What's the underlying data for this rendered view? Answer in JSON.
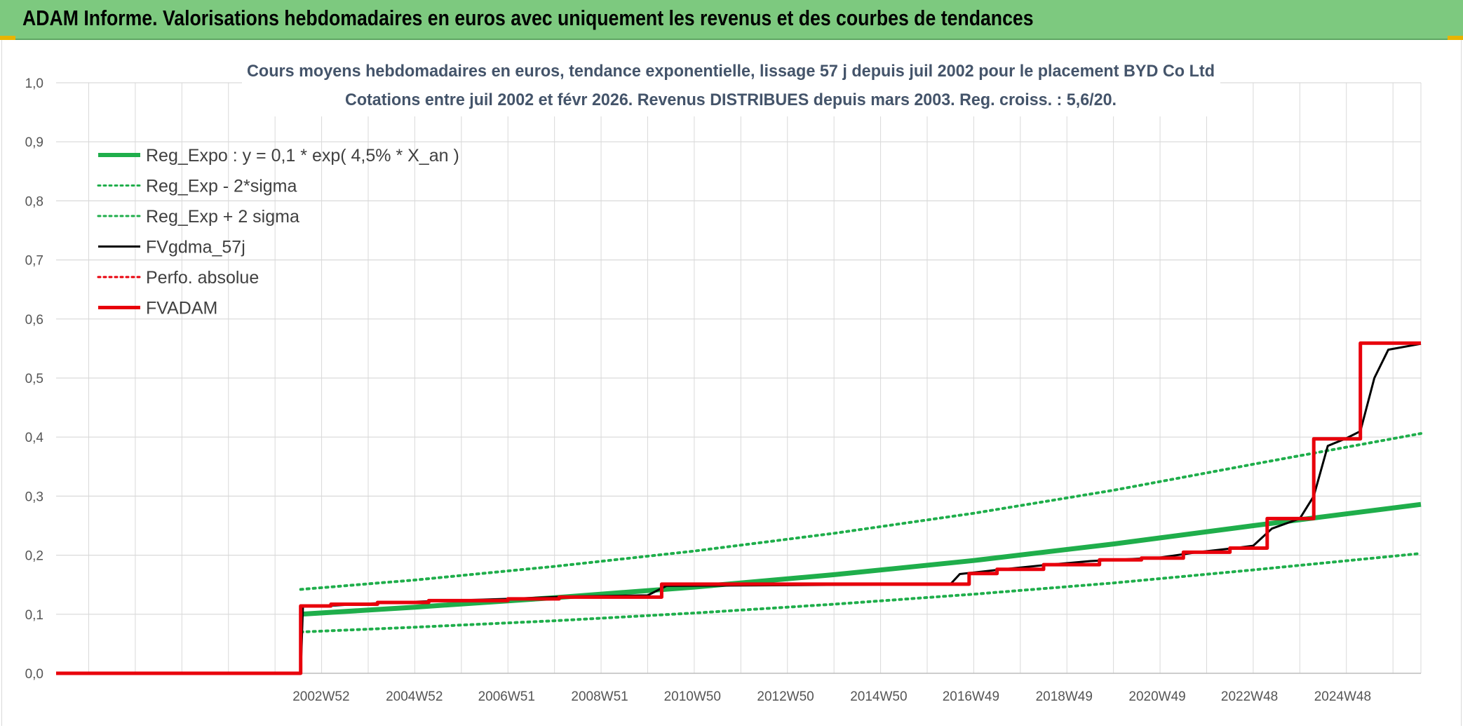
{
  "header": {
    "title": "ADAM Informe. Valorisations hebdomadaires en euros avec uniquement les revenus et des courbes de tendances"
  },
  "colors": {
    "header_bg": "#7dc97f",
    "green": "#1fae4b",
    "red": "#e8000b",
    "black": "#000000",
    "grid": "#d9d9d9"
  },
  "chart_data": {
    "type": "line",
    "title": "Cours moyens hebdomadaires en euros, tendance exponentielle, lissage 57 j depuis juil 2002 pour le placement BYD Co Ltd",
    "subtitle": "Cotations entre juil 2002 et févr 2026. Revenus DISTRIBUES depuis mars 2003. Reg. croiss. : 5,6/20.",
    "xlabel": "",
    "ylabel": "",
    "ylim": [
      0,
      1.0
    ],
    "yticks": [
      "0,0",
      "0,1",
      "0,2",
      "0,3",
      "0,4",
      "0,5",
      "0,6",
      "0,7",
      "0,8",
      "0,9",
      "1,0"
    ],
    "xlim": [
      1997.3,
      2026.6
    ],
    "xticks": [
      {
        "label": "2002W52",
        "x": 2002.99
      },
      {
        "label": "2004W52",
        "x": 2004.99
      },
      {
        "label": "2006W51",
        "x": 2006.97
      },
      {
        "label": "2008W51",
        "x": 2008.97
      },
      {
        "label": "2010W50",
        "x": 2010.96
      },
      {
        "label": "2012W50",
        "x": 2012.96
      },
      {
        "label": "2014W50",
        "x": 2014.96
      },
      {
        "label": "2016W49",
        "x": 2016.94
      },
      {
        "label": "2018W49",
        "x": 2018.94
      },
      {
        "label": "2020W49",
        "x": 2020.94
      },
      {
        "label": "2022W48",
        "x": 2022.92
      },
      {
        "label": "2024W48",
        "x": 2024.92
      }
    ],
    "grid": true,
    "legend_position": "top-left",
    "series": [
      {
        "name": "Reg_Expo : y = 0,1 * exp( 4,5% *  X_an )",
        "style": "solid-thick",
        "color": "#1fae4b",
        "points": [
          [
            2002.55,
            0.1
          ],
          [
            2005,
            0.112
          ],
          [
            2008,
            0.128
          ],
          [
            2011,
            0.146
          ],
          [
            2014,
            0.167
          ],
          [
            2017,
            0.191
          ],
          [
            2020,
            0.219
          ],
          [
            2023,
            0.25
          ],
          [
            2026.6,
            0.286
          ]
        ]
      },
      {
        "name": "Reg_Exp - 2*sigma",
        "style": "dotted",
        "color": "#1fae4b",
        "points": [
          [
            2002.55,
            0.07
          ],
          [
            2005,
            0.078
          ],
          [
            2008,
            0.089
          ],
          [
            2011,
            0.102
          ],
          [
            2014,
            0.117
          ],
          [
            2017,
            0.134
          ],
          [
            2020,
            0.153
          ],
          [
            2023,
            0.175
          ],
          [
            2026.6,
            0.203
          ]
        ]
      },
      {
        "name": "Reg_Exp + 2 sigma",
        "style": "dotted",
        "color": "#1fae4b",
        "points": [
          [
            2002.55,
            0.142
          ],
          [
            2005,
            0.158
          ],
          [
            2008,
            0.181
          ],
          [
            2011,
            0.207
          ],
          [
            2014,
            0.237
          ],
          [
            2017,
            0.271
          ],
          [
            2020,
            0.31
          ],
          [
            2023,
            0.354
          ],
          [
            2026.6,
            0.406
          ]
        ]
      },
      {
        "name": "FVgdma_57j",
        "style": "solid",
        "color": "#000000",
        "points": [
          [
            1997.3,
            0.0
          ],
          [
            2002.55,
            0.0
          ],
          [
            2002.6,
            0.114
          ],
          [
            2003.3,
            0.115
          ],
          [
            2004.0,
            0.118
          ],
          [
            2005.3,
            0.122
          ],
          [
            2007.0,
            0.126
          ],
          [
            2008.3,
            0.13
          ],
          [
            2010.0,
            0.132
          ],
          [
            2010.4,
            0.148
          ],
          [
            2016.5,
            0.151
          ],
          [
            2016.7,
            0.168
          ],
          [
            2017.5,
            0.175
          ],
          [
            2018.5,
            0.183
          ],
          [
            2019.5,
            0.19
          ],
          [
            2021.0,
            0.196
          ],
          [
            2021.8,
            0.205
          ],
          [
            2022.6,
            0.212
          ],
          [
            2023.0,
            0.216
          ],
          [
            2023.4,
            0.245
          ],
          [
            2024.0,
            0.262
          ],
          [
            2024.3,
            0.3
          ],
          [
            2024.6,
            0.385
          ],
          [
            2025.0,
            0.398
          ],
          [
            2025.3,
            0.41
          ],
          [
            2025.6,
            0.5
          ],
          [
            2025.9,
            0.548
          ],
          [
            2026.6,
            0.558
          ]
        ]
      },
      {
        "name": "Perfo. absolue",
        "style": "dotted",
        "color": "#e8000b",
        "points": []
      },
      {
        "name": "FVADAM",
        "style": "solid-thick",
        "color": "#e8000b",
        "points": [
          [
            1997.3,
            0.0
          ],
          [
            2002.55,
            0.0
          ],
          [
            2002.55,
            0.114
          ],
          [
            2003.2,
            0.114
          ],
          [
            2003.2,
            0.117
          ],
          [
            2004.2,
            0.117
          ],
          [
            2004.2,
            0.12
          ],
          [
            2005.3,
            0.12
          ],
          [
            2005.3,
            0.123
          ],
          [
            2007.0,
            0.123
          ],
          [
            2007.0,
            0.126
          ],
          [
            2008.1,
            0.126
          ],
          [
            2008.1,
            0.129
          ],
          [
            2010.3,
            0.129
          ],
          [
            2010.3,
            0.151
          ],
          [
            2016.9,
            0.151
          ],
          [
            2016.9,
            0.169
          ],
          [
            2017.5,
            0.169
          ],
          [
            2017.5,
            0.176
          ],
          [
            2018.5,
            0.176
          ],
          [
            2018.5,
            0.184
          ],
          [
            2019.7,
            0.184
          ],
          [
            2019.7,
            0.192
          ],
          [
            2020.6,
            0.192
          ],
          [
            2020.6,
            0.195
          ],
          [
            2021.5,
            0.195
          ],
          [
            2021.5,
            0.205
          ],
          [
            2022.5,
            0.205
          ],
          [
            2022.5,
            0.212
          ],
          [
            2023.3,
            0.212
          ],
          [
            2023.3,
            0.262
          ],
          [
            2024.3,
            0.262
          ],
          [
            2024.3,
            0.397
          ],
          [
            2025.3,
            0.397
          ],
          [
            2025.3,
            0.559
          ],
          [
            2026.6,
            0.559
          ]
        ]
      }
    ]
  }
}
